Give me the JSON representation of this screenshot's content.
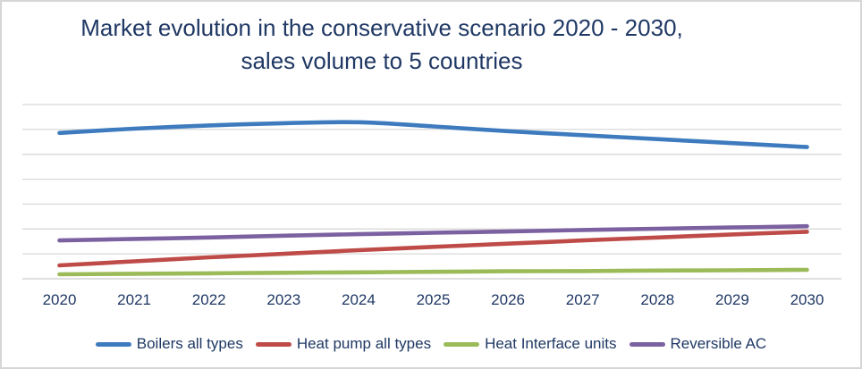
{
  "figure": {
    "background": "#FFFFFF",
    "border_color": "#D6D6D6"
  },
  "title": {
    "line1": "Market evolution in the conservative scenario 2020 - 2030,",
    "line2": "sales volume to 5 countries",
    "color": "#1F3864"
  },
  "axis": {
    "tick_color": "#1F3864",
    "gridline_color": "#D9D9D9",
    "axis_line_color": "#CCCCCC"
  },
  "chart_data": {
    "type": "line",
    "title": "Market evolution in the conservative scenario 2020 - 2030, sales volume to 5 countries",
    "x": [
      "2020",
      "2021",
      "2022",
      "2023",
      "2024",
      "2025",
      "2026",
      "2027",
      "2028",
      "2029",
      "2030"
    ],
    "xlabel": "",
    "ylabel": "",
    "ylim": [
      0,
      7
    ],
    "y_axis_labels_visible": false,
    "gridlines": "horizontal",
    "gridline_step": 1,
    "legend_position": "bottom",
    "smooth": true,
    "series": [
      {
        "name": "Boilers all types",
        "color": "#3E7BBE",
        "values": [
          5.86,
          6.03,
          6.16,
          6.25,
          6.29,
          6.12,
          5.93,
          5.77,
          5.61,
          5.45,
          5.29
        ]
      },
      {
        "name": "Heat pump all types",
        "color": "#BE4B48",
        "values": [
          0.54,
          0.7,
          0.86,
          1.0,
          1.15,
          1.28,
          1.41,
          1.54,
          1.66,
          1.78,
          1.89
        ]
      },
      {
        "name": "Heat Interface units",
        "color": "#9BBB59",
        "values": [
          0.18,
          0.2,
          0.22,
          0.24,
          0.26,
          0.28,
          0.3,
          0.31,
          0.33,
          0.34,
          0.36
        ]
      },
      {
        "name": "Reversible AC",
        "color": "#7C61A1",
        "values": [
          1.54,
          1.6,
          1.66,
          1.73,
          1.79,
          1.85,
          1.9,
          1.96,
          2.01,
          2.06,
          2.11
        ]
      }
    ]
  }
}
